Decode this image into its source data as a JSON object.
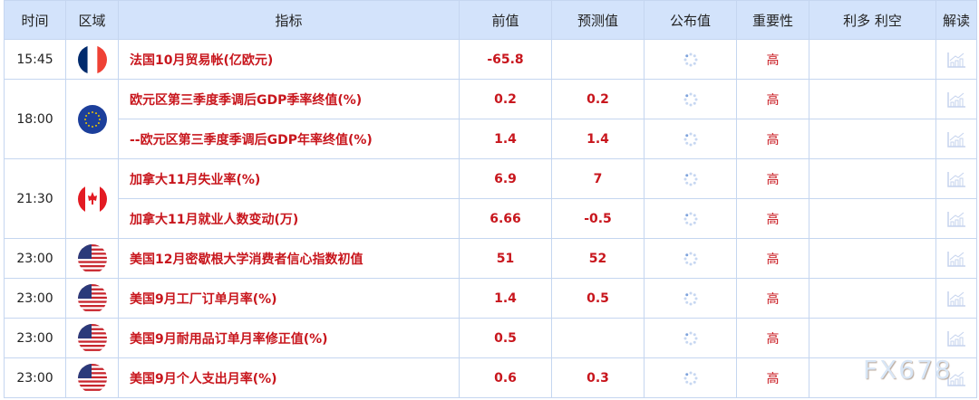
{
  "headers": {
    "time": "时间",
    "region": "区域",
    "indicator": "指标",
    "previous": "前值",
    "forecast": "预测值",
    "actual": "公布值",
    "importance": "重要性",
    "impact": "利多 利空",
    "analysis": "解读"
  },
  "rows": [
    {
      "time": "15:45",
      "flag": "france-flag",
      "indicator": "法国10月贸易帐(亿欧元)",
      "previous": "-65.8",
      "forecast": "",
      "importance": "高"
    },
    {
      "time": "18:00",
      "flag": "eu-flag",
      "indicator": "欧元区第三季度季调后GDP季率终值(%)",
      "previous": "0.2",
      "forecast": "0.2",
      "importance": "高"
    },
    {
      "time": "",
      "flag": "",
      "indicator": "--欧元区第三季度季调后GDP年率终值(%)",
      "previous": "1.4",
      "forecast": "1.4",
      "importance": "高"
    },
    {
      "time": "21:30",
      "flag": "canada-flag",
      "indicator": "加拿大11月失业率(%)",
      "previous": "6.9",
      "forecast": "7",
      "importance": "高"
    },
    {
      "time": "",
      "flag": "",
      "indicator": "加拿大11月就业人数变动(万)",
      "previous": "6.66",
      "forecast": "-0.5",
      "importance": "高"
    },
    {
      "time": "23:00",
      "flag": "us-flag",
      "indicator": "美国12月密歇根大学消费者信心指数初值",
      "previous": "51",
      "forecast": "52",
      "importance": "高"
    },
    {
      "time": "23:00",
      "flag": "us-flag",
      "indicator": "美国9月工厂订单月率(%)",
      "previous": "1.4",
      "forecast": "0.5",
      "importance": "高"
    },
    {
      "time": "23:00",
      "flag": "us-flag",
      "indicator": "美国9月耐用品订单月率修正值(%)",
      "previous": "0.5",
      "forecast": "",
      "importance": "高"
    },
    {
      "time": "23:00",
      "flag": "us-flag",
      "indicator": "美国9月个人支出月率(%)",
      "previous": "0.6",
      "forecast": "0.3",
      "importance": "高"
    }
  ],
  "watermark": "FX678",
  "colors": {
    "header_bg": "#d3e3fb",
    "accent": "#c8161d",
    "border": "#c5d6f0"
  }
}
